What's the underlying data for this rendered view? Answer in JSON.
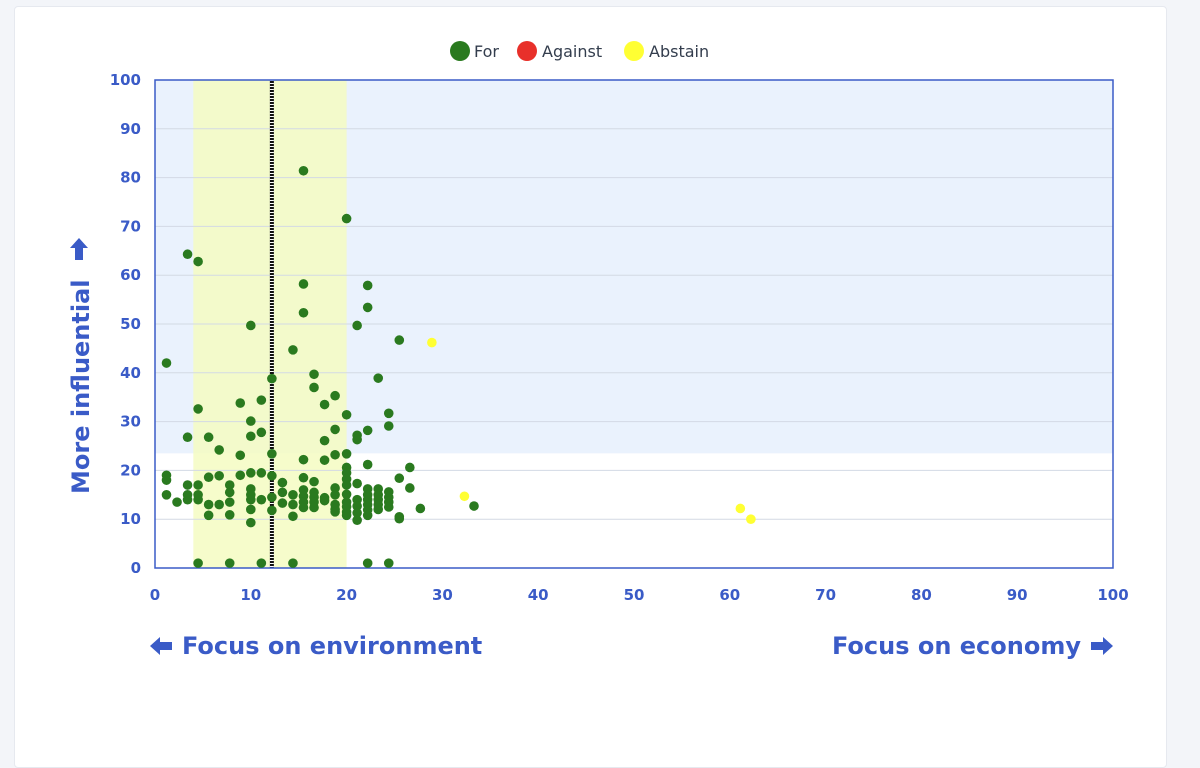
{
  "colors": {
    "for": "#2a7a1f",
    "against": "#e8302a",
    "abstain": "#ffff33",
    "axis": "#3a5bc7",
    "influential_zone": "#eaf2fd",
    "focus_band": "#f4fbc2"
  },
  "chart_data": {
    "type": "scatter",
    "title": "",
    "xlabel_left": "Focus on environment",
    "xlabel_right": "Focus on economy",
    "ylabel": "More influential",
    "xlim": [
      0,
      100
    ],
    "ylim": [
      0,
      100
    ],
    "xticks": [
      "0",
      "10",
      "20",
      "30",
      "40",
      "50",
      "60",
      "70",
      "80",
      "90",
      "100"
    ],
    "yticks": [
      "0",
      "10",
      "20",
      "30",
      "40",
      "50",
      "60",
      "70",
      "80",
      "90",
      "100"
    ],
    "grid": true,
    "legend_position": "top-center",
    "regions": {
      "influential_threshold_y": 23.5,
      "focus_band_x": [
        4,
        20
      ],
      "median_line_x": 12.2
    },
    "series": [
      {
        "name": "For",
        "color_key": "for",
        "points": [
          [
            1.2,
            42
          ],
          [
            1.2,
            19
          ],
          [
            1.2,
            18
          ],
          [
            1.2,
            15
          ],
          [
            2.3,
            13.5
          ],
          [
            3.4,
            64.3
          ],
          [
            3.4,
            26.8
          ],
          [
            3.4,
            17
          ],
          [
            3.4,
            15
          ],
          [
            3.4,
            14
          ],
          [
            4.5,
            62.8
          ],
          [
            4.5,
            32.6
          ],
          [
            4.5,
            17
          ],
          [
            4.5,
            15
          ],
          [
            4.5,
            14
          ],
          [
            4.5,
            1
          ],
          [
            5.6,
            26.8
          ],
          [
            5.6,
            18.6
          ],
          [
            5.6,
            13
          ],
          [
            5.6,
            10.8
          ],
          [
            6.7,
            24.2
          ],
          [
            6.7,
            18.9
          ],
          [
            6.7,
            13
          ],
          [
            7.8,
            17
          ],
          [
            7.8,
            15.5
          ],
          [
            7.8,
            13.5
          ],
          [
            7.8,
            10.9
          ],
          [
            7.8,
            1
          ],
          [
            8.9,
            33.8
          ],
          [
            8.9,
            23.1
          ],
          [
            8.9,
            19
          ],
          [
            10.0,
            49.7
          ],
          [
            10.0,
            30.1
          ],
          [
            10.0,
            27
          ],
          [
            10.0,
            19.5
          ],
          [
            10.0,
            16.2
          ],
          [
            10.0,
            15
          ],
          [
            10.0,
            14
          ],
          [
            10.0,
            12
          ],
          [
            10.0,
            9.3
          ],
          [
            11.1,
            34.4
          ],
          [
            11.1,
            27.8
          ],
          [
            11.1,
            19.5
          ],
          [
            11.1,
            14
          ],
          [
            11.1,
            1
          ],
          [
            12.2,
            38.8
          ],
          [
            12.2,
            23.4
          ],
          [
            12.2,
            18.9
          ],
          [
            12.2,
            14.5
          ],
          [
            12.2,
            11.8
          ],
          [
            13.3,
            17.5
          ],
          [
            13.3,
            15.5
          ],
          [
            13.3,
            13.3
          ],
          [
            14.4,
            44.7
          ],
          [
            14.4,
            15
          ],
          [
            14.4,
            13
          ],
          [
            14.4,
            10.6
          ],
          [
            14.4,
            1
          ],
          [
            15.5,
            81.4
          ],
          [
            15.5,
            58.2
          ],
          [
            15.5,
            52.3
          ],
          [
            15.5,
            22.2
          ],
          [
            15.5,
            18.5
          ],
          [
            15.5,
            16
          ],
          [
            15.5,
            14.7
          ],
          [
            15.5,
            13.5
          ],
          [
            15.5,
            12.4
          ],
          [
            16.6,
            39.7
          ],
          [
            16.6,
            37
          ],
          [
            16.6,
            17.7
          ],
          [
            16.6,
            15.5
          ],
          [
            16.6,
            14.5
          ],
          [
            16.6,
            13.5
          ],
          [
            16.6,
            12.4
          ],
          [
            17.7,
            33.5
          ],
          [
            17.7,
            26.1
          ],
          [
            17.7,
            22.1
          ],
          [
            17.7,
            14.4
          ],
          [
            17.7,
            13.8
          ],
          [
            18.8,
            35.3
          ],
          [
            18.8,
            28.4
          ],
          [
            18.8,
            23.2
          ],
          [
            18.8,
            16.4
          ],
          [
            18.8,
            15
          ],
          [
            18.8,
            13
          ],
          [
            18.8,
            12
          ],
          [
            18.8,
            11.5
          ],
          [
            20.0,
            71.6
          ],
          [
            20.0,
            31.4
          ],
          [
            20.0,
            23.4
          ],
          [
            20.0,
            20.6
          ],
          [
            20.0,
            19.5
          ],
          [
            20.0,
            18.2
          ],
          [
            20.0,
            17
          ],
          [
            20.0,
            15.1
          ],
          [
            20.0,
            13.5
          ],
          [
            20.0,
            12.6
          ],
          [
            20.0,
            11.5
          ],
          [
            20.0,
            10.8
          ],
          [
            21.1,
            49.7
          ],
          [
            21.1,
            27.2
          ],
          [
            21.1,
            26.3
          ],
          [
            21.1,
            17.3
          ],
          [
            21.1,
            14
          ],
          [
            21.1,
            12.7
          ],
          [
            21.1,
            11.3
          ],
          [
            21.1,
            9.8
          ],
          [
            22.2,
            57.9
          ],
          [
            22.2,
            53.4
          ],
          [
            22.2,
            28.2
          ],
          [
            22.2,
            21.2
          ],
          [
            22.2,
            16.2
          ],
          [
            22.2,
            15
          ],
          [
            22.2,
            14
          ],
          [
            22.2,
            13
          ],
          [
            22.2,
            11.9
          ],
          [
            22.2,
            10.8
          ],
          [
            22.2,
            1
          ],
          [
            23.3,
            38.9
          ],
          [
            23.3,
            16.2
          ],
          [
            23.3,
            15
          ],
          [
            23.3,
            14
          ],
          [
            23.3,
            13
          ],
          [
            23.3,
            12
          ],
          [
            24.4,
            31.7
          ],
          [
            24.4,
            29.1
          ],
          [
            24.4,
            15.6
          ],
          [
            24.4,
            14.5
          ],
          [
            24.4,
            13.5
          ],
          [
            24.4,
            12.5
          ],
          [
            24.4,
            1
          ],
          [
            25.5,
            46.7
          ],
          [
            25.5,
            18.4
          ],
          [
            25.5,
            10.5
          ],
          [
            25.5,
            10.1
          ],
          [
            26.6,
            20.6
          ],
          [
            26.6,
            16.4
          ],
          [
            27.7,
            12.2
          ],
          [
            33.3,
            12.7
          ]
        ]
      },
      {
        "name": "Against",
        "color_key": "against",
        "points": []
      },
      {
        "name": "Abstain",
        "color_key": "abstain",
        "points": [
          [
            28.9,
            46.2
          ],
          [
            32.3,
            14.7
          ],
          [
            61.1,
            12.2
          ],
          [
            62.2,
            10
          ]
        ]
      }
    ]
  }
}
